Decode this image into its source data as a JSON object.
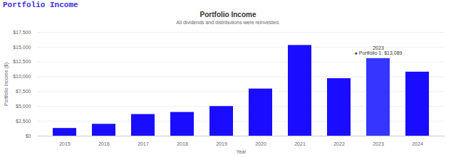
{
  "header": "Portfolio Income",
  "chart_data": {
    "type": "bar",
    "title": "Portfolio Income",
    "subtitle": "All dividends and distributions were reinvested.",
    "x_label": "Year",
    "y_label": "Portfolio Income ($)",
    "categories": [
      "2015",
      "2016",
      "2017",
      "2018",
      "2019",
      "2020",
      "2021",
      "2022",
      "2023",
      "2024"
    ],
    "values": [
      1300,
      2000,
      3650,
      4000,
      5000,
      7950,
      15300,
      9700,
      13089,
      10800
    ],
    "colors": [
      "#1a0dff",
      "#1a0dff",
      "#1a0dff",
      "#1a0dff",
      "#1a0dff",
      "#1a0dff",
      "#1a0dff",
      "#1a0dff",
      "#3535ff",
      "#1a0dff"
    ],
    "ylim": [
      0,
      17500
    ],
    "yticks": [
      {
        "value": 0,
        "label": "$0"
      },
      {
        "value": 2500,
        "label": "$2,500"
      },
      {
        "value": 5000,
        "label": "$5,000"
      },
      {
        "value": 7500,
        "label": "$7,500"
      },
      {
        "value": 10000,
        "label": "$10,000"
      },
      {
        "value": 12500,
        "label": "$12,500"
      },
      {
        "value": 15000,
        "label": "$15,000"
      },
      {
        "value": 17500,
        "label": "$17,500"
      }
    ],
    "grid": true,
    "annotations": [
      {
        "x": "2023",
        "lines": [
          "2023",
          "● Portfolio 1: $13,089"
        ]
      }
    ]
  }
}
